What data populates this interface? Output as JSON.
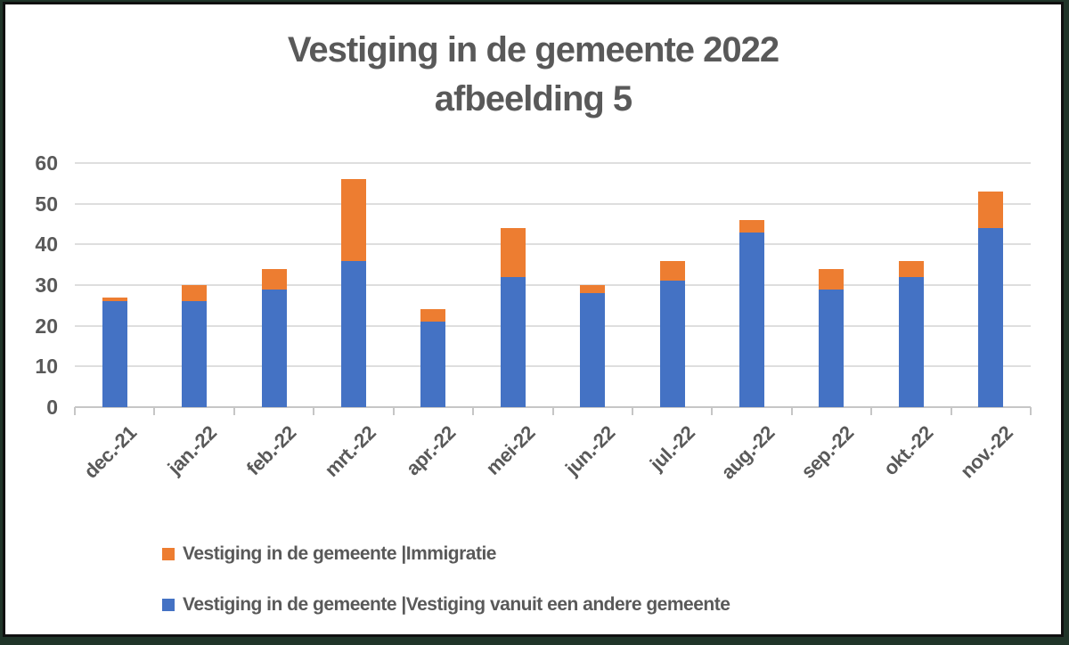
{
  "title": {
    "line1": "Vestiging in de gemeente 2022",
    "line2": "afbeelding 5",
    "color": "#595959"
  },
  "colors": {
    "frame": "#203529",
    "inner_border": "#101010",
    "background": "#ffffff",
    "gridline": "#dedede",
    "axis_line": "#c6c6c6",
    "text": "#595959",
    "series_blue": "#4472c4",
    "series_orange": "#ed7d31"
  },
  "chart_data": {
    "type": "bar",
    "stacked": true,
    "title": "Vestiging in de gemeente 2022 afbeelding 5",
    "xlabel": "",
    "ylabel": "",
    "ylim": [
      0,
      60
    ],
    "yticks": [
      0,
      10,
      20,
      30,
      40,
      50,
      60
    ],
    "grid": true,
    "legend_position": "bottom-left",
    "categories": [
      "dec.-21",
      "jan.-22",
      "feb.-22",
      "mrt.-22",
      "apr.-22",
      "mei-22",
      "jun.-22",
      "jul.-22",
      "aug.-22",
      "sep.-22",
      "okt.-22",
      "nov.-22"
    ],
    "series": [
      {
        "name": "Vestiging in de gemeente |Vestiging vanuit een andere gemeente",
        "color": "#4472c4",
        "stack_position": "bottom",
        "values": [
          26,
          26,
          29,
          36,
          21,
          32,
          28,
          31,
          43,
          29,
          32,
          44
        ]
      },
      {
        "name": "Vestiging in de gemeente |Immigratie",
        "color": "#ed7d31",
        "stack_position": "top",
        "values": [
          1,
          4,
          5,
          20,
          3,
          12,
          2,
          5,
          3,
          5,
          4,
          9
        ]
      }
    ],
    "stacked_totals": [
      27,
      30,
      34,
      56,
      24,
      44,
      30,
      36,
      46,
      34,
      36,
      53
    ]
  },
  "legend": {
    "items": [
      {
        "label": "Vestiging in de gemeente |Immigratie",
        "color": "#ed7d31"
      },
      {
        "label": "Vestiging in de gemeente |Vestiging vanuit een andere gemeente",
        "color": "#4472c4"
      }
    ]
  }
}
